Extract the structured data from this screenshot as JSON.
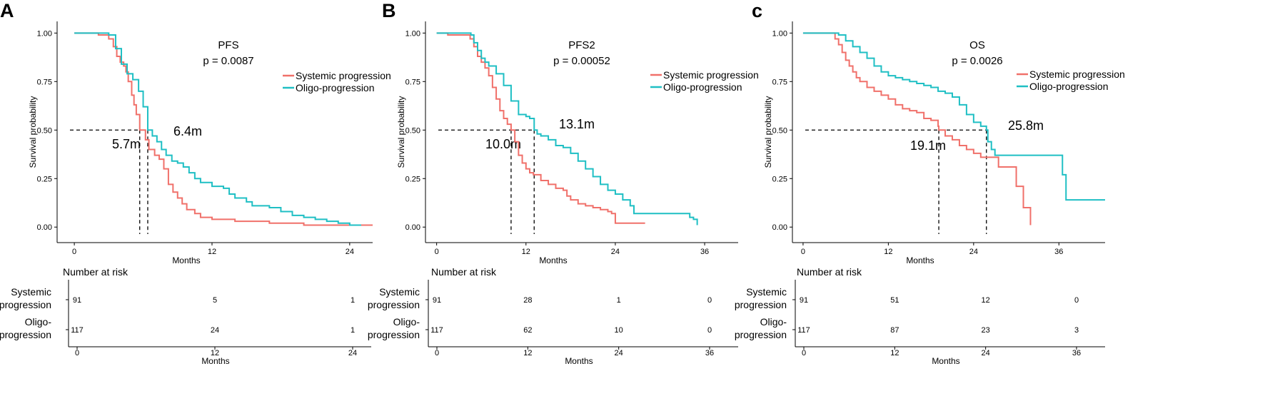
{
  "colors": {
    "systemic": "#F0706A",
    "oligo": "#1FBFC4",
    "axis": "#000000",
    "text": "#000000"
  },
  "risk_table_title": "Number at risk",
  "chart_data": [
    {
      "panel_label": "A",
      "type": "line",
      "title": "PFS",
      "pvalue": "p = 0.0087",
      "xlabel": "Months",
      "ylabel": "Survival probability",
      "xlim": [
        -1.5,
        26
      ],
      "ylim": [
        -0.08,
        1.06
      ],
      "xticks": [
        0,
        12,
        24
      ],
      "yticks": [
        "0.00",
        "0.25",
        "0.50",
        "0.75",
        "1.00"
      ],
      "yvalues": [
        0,
        0.25,
        0.5,
        0.75,
        1
      ],
      "median_annotations": [
        {
          "label": "5.7m",
          "x": 5.7,
          "series": "systemic"
        },
        {
          "label": "6.4m",
          "x": 6.4,
          "series": "oligo"
        }
      ],
      "series": [
        {
          "name": "Systemic progression",
          "key": "systemic",
          "points": [
            [
              0,
              1
            ],
            [
              2.1,
              1
            ],
            [
              2.1,
              0.99
            ],
            [
              3,
              0.99
            ],
            [
              3,
              0.97
            ],
            [
              3.4,
              0.97
            ],
            [
              3.4,
              0.93
            ],
            [
              3.7,
              0.88
            ],
            [
              4,
              0.85
            ],
            [
              4.3,
              0.83
            ],
            [
              4.5,
              0.8
            ],
            [
              4.7,
              0.75
            ],
            [
              5,
              0.68
            ],
            [
              5.2,
              0.63
            ],
            [
              5.4,
              0.58
            ],
            [
              5.7,
              0.5
            ],
            [
              6.2,
              0.45
            ],
            [
              6.5,
              0.4
            ],
            [
              7,
              0.37
            ],
            [
              7.4,
              0.35
            ],
            [
              7.8,
              0.3
            ],
            [
              8.2,
              0.22
            ],
            [
              8.6,
              0.18
            ],
            [
              9,
              0.15
            ],
            [
              9.4,
              0.12
            ],
            [
              9.8,
              0.09
            ],
            [
              10.5,
              0.07
            ],
            [
              11,
              0.05
            ],
            [
              12,
              0.04
            ],
            [
              14,
              0.03
            ],
            [
              17,
              0.02
            ],
            [
              20,
              0.01
            ],
            [
              26,
              0.01
            ]
          ]
        },
        {
          "name": "Oligo-progression",
          "key": "oligo",
          "points": [
            [
              0,
              1
            ],
            [
              2.9,
              1
            ],
            [
              3,
              0.99
            ],
            [
              3.6,
              0.92
            ],
            [
              4.1,
              0.84
            ],
            [
              4.6,
              0.79
            ],
            [
              5.1,
              0.76
            ],
            [
              5.6,
              0.7
            ],
            [
              6,
              0.62
            ],
            [
              6.4,
              0.5
            ],
            [
              6.8,
              0.47
            ],
            [
              7.2,
              0.44
            ],
            [
              7.6,
              0.4
            ],
            [
              8,
              0.37
            ],
            [
              8.5,
              0.34
            ],
            [
              9,
              0.33
            ],
            [
              9.5,
              0.31
            ],
            [
              10,
              0.28
            ],
            [
              10.5,
              0.25
            ],
            [
              11,
              0.23
            ],
            [
              12,
              0.21
            ],
            [
              13,
              0.2
            ],
            [
              13.5,
              0.17
            ],
            [
              14,
              0.15
            ],
            [
              15,
              0.13
            ],
            [
              15.5,
              0.11
            ],
            [
              17,
              0.1
            ],
            [
              18,
              0.08
            ],
            [
              19,
              0.06
            ],
            [
              20,
              0.05
            ],
            [
              21,
              0.04
            ],
            [
              22,
              0.03
            ],
            [
              23,
              0.02
            ],
            [
              24,
              0.01
            ],
            [
              25,
              0.01
            ]
          ]
        }
      ],
      "risk_table": {
        "xticks": [
          0,
          12,
          24
        ],
        "rows": [
          {
            "label_lines": [
              "Systemic",
              "progression"
            ],
            "values": [
              "91",
              "5",
              "1"
            ]
          },
          {
            "label_lines": [
              "Oligo-",
              "progression"
            ],
            "values": [
              "117",
              "24",
              "1"
            ]
          }
        ]
      }
    },
    {
      "panel_label": "B",
      "type": "line",
      "title": "PFS2",
      "pvalue": "p = 0.00052",
      "xlabel": "Months",
      "ylabel": "Survival probability",
      "xlim": [
        -1.5,
        40.5
      ],
      "ylim": [
        -0.08,
        1.06
      ],
      "xticks": [
        0,
        12,
        24,
        36
      ],
      "yticks": [
        "0.00",
        "0.25",
        "0.50",
        "0.75",
        "1.00"
      ],
      "yvalues": [
        0,
        0.25,
        0.5,
        0.75,
        1
      ],
      "median_annotations": [
        {
          "label": "10.0m",
          "x": 10.0,
          "series": "systemic"
        },
        {
          "label": "13.1m",
          "x": 13.1,
          "series": "oligo"
        }
      ],
      "series": [
        {
          "name": "Systemic progression",
          "key": "systemic",
          "points": [
            [
              0,
              1
            ],
            [
              1.5,
              1
            ],
            [
              1.5,
              0.99
            ],
            [
              4,
              0.99
            ],
            [
              4.5,
              0.97
            ],
            [
              5,
              0.93
            ],
            [
              5.5,
              0.88
            ],
            [
              6,
              0.85
            ],
            [
              6.5,
              0.82
            ],
            [
              7,
              0.78
            ],
            [
              7.5,
              0.72
            ],
            [
              8,
              0.66
            ],
            [
              8.5,
              0.6
            ],
            [
              9,
              0.56
            ],
            [
              9.5,
              0.53
            ],
            [
              10,
              0.5
            ],
            [
              10.5,
              0.44
            ],
            [
              11,
              0.37
            ],
            [
              11.5,
              0.33
            ],
            [
              12,
              0.3
            ],
            [
              12.5,
              0.28
            ],
            [
              13,
              0.27
            ],
            [
              14,
              0.24
            ],
            [
              15,
              0.22
            ],
            [
              16,
              0.2
            ],
            [
              17,
              0.19
            ],
            [
              17.5,
              0.16
            ],
            [
              18,
              0.14
            ],
            [
              19,
              0.12
            ],
            [
              20,
              0.11
            ],
            [
              21,
              0.1
            ],
            [
              22,
              0.09
            ],
            [
              23,
              0.08
            ],
            [
              23.5,
              0.07
            ],
            [
              24,
              0.02
            ],
            [
              28,
              0.02
            ]
          ]
        },
        {
          "name": "Oligo-progression",
          "key": "oligo",
          "points": [
            [
              0,
              1
            ],
            [
              4.3,
              1
            ],
            [
              4.6,
              0.99
            ],
            [
              5,
              0.95
            ],
            [
              5.5,
              0.91
            ],
            [
              6,
              0.87
            ],
            [
              6.5,
              0.85
            ],
            [
              7,
              0.83
            ],
            [
              8,
              0.79
            ],
            [
              9,
              0.73
            ],
            [
              10,
              0.65
            ],
            [
              11,
              0.58
            ],
            [
              12,
              0.57
            ],
            [
              12.5,
              0.56
            ],
            [
              13.1,
              0.5
            ],
            [
              13.5,
              0.48
            ],
            [
              14,
              0.47
            ],
            [
              15,
              0.45
            ],
            [
              16,
              0.42
            ],
            [
              17,
              0.41
            ],
            [
              18,
              0.38
            ],
            [
              19,
              0.34
            ],
            [
              20,
              0.3
            ],
            [
              21,
              0.26
            ],
            [
              22,
              0.22
            ],
            [
              23,
              0.19
            ],
            [
              24,
              0.17
            ],
            [
              25,
              0.14
            ],
            [
              26,
              0.11
            ],
            [
              26.5,
              0.07
            ],
            [
              28,
              0.07
            ],
            [
              33,
              0.07
            ],
            [
              34,
              0.05
            ],
            [
              34.5,
              0.04
            ],
            [
              35,
              0.01
            ]
          ]
        }
      ],
      "risk_table": {
        "xticks": [
          0,
          12,
          24,
          36
        ],
        "rows": [
          {
            "label_lines": [
              "Systemic",
              "progression"
            ],
            "values": [
              "91",
              "28",
              "1",
              "0"
            ]
          },
          {
            "label_lines": [
              "Oligo-",
              "progression"
            ],
            "values": [
              "117",
              "62",
              "10",
              "0"
            ]
          }
        ]
      }
    },
    {
      "panel_label": "c",
      "type": "line",
      "title": "OS",
      "pvalue": "p = 0.0026",
      "xlabel": "Months",
      "ylabel": "Survival probability",
      "xlim": [
        -1.5,
        42.5
      ],
      "ylim": [
        -0.08,
        1.06
      ],
      "xticks": [
        0,
        12,
        24,
        36
      ],
      "yticks": [
        "0.00",
        "0.25",
        "0.50",
        "0.75",
        "1.00"
      ],
      "yvalues": [
        0,
        0.25,
        0.5,
        0.75,
        1
      ],
      "median_annotations": [
        {
          "label": "19.1m",
          "x": 19.1,
          "series": "systemic"
        },
        {
          "label": "25.8m",
          "x": 25.8,
          "series": "oligo"
        }
      ],
      "series": [
        {
          "name": "Systemic progression",
          "key": "systemic",
          "points": [
            [
              0,
              1
            ],
            [
              4,
              1
            ],
            [
              4.5,
              0.97
            ],
            [
              5,
              0.94
            ],
            [
              5.5,
              0.9
            ],
            [
              6,
              0.86
            ],
            [
              6.5,
              0.83
            ],
            [
              7,
              0.8
            ],
            [
              7.5,
              0.77
            ],
            [
              8,
              0.75
            ],
            [
              9,
              0.72
            ],
            [
              10,
              0.7
            ],
            [
              11,
              0.68
            ],
            [
              12,
              0.66
            ],
            [
              13,
              0.63
            ],
            [
              14,
              0.61
            ],
            [
              15,
              0.6
            ],
            [
              16,
              0.59
            ],
            [
              17,
              0.56
            ],
            [
              18,
              0.55
            ],
            [
              19,
              0.52
            ],
            [
              19.1,
              0.5
            ],
            [
              20,
              0.47
            ],
            [
              21,
              0.45
            ],
            [
              22,
              0.42
            ],
            [
              23,
              0.4
            ],
            [
              24,
              0.38
            ],
            [
              25,
              0.36
            ],
            [
              27,
              0.36
            ],
            [
              27.5,
              0.31
            ],
            [
              30,
              0.31
            ],
            [
              30,
              0.21
            ],
            [
              31,
              0.21
            ],
            [
              31,
              0.1
            ],
            [
              32,
              0.1
            ],
            [
              32,
              0.01
            ]
          ]
        },
        {
          "name": "Oligo-progression",
          "key": "oligo",
          "points": [
            [
              0,
              1
            ],
            [
              4.5,
              1
            ],
            [
              5,
              0.99
            ],
            [
              6,
              0.96
            ],
            [
              7,
              0.93
            ],
            [
              8,
              0.9
            ],
            [
              9,
              0.87
            ],
            [
              10,
              0.83
            ],
            [
              11,
              0.8
            ],
            [
              12,
              0.78
            ],
            [
              13,
              0.77
            ],
            [
              14,
              0.76
            ],
            [
              15,
              0.75
            ],
            [
              16,
              0.74
            ],
            [
              17,
              0.73
            ],
            [
              18,
              0.72
            ],
            [
              19,
              0.7
            ],
            [
              20,
              0.69
            ],
            [
              21,
              0.67
            ],
            [
              22,
              0.63
            ],
            [
              23,
              0.58
            ],
            [
              24,
              0.54
            ],
            [
              25,
              0.52
            ],
            [
              25.8,
              0.5
            ],
            [
              26,
              0.44
            ],
            [
              26.5,
              0.4
            ],
            [
              27,
              0.37
            ],
            [
              29,
              0.37
            ],
            [
              33,
              0.37
            ],
            [
              36.5,
              0.37
            ],
            [
              36.5,
              0.27
            ],
            [
              37,
              0.27
            ],
            [
              37,
              0.14
            ],
            [
              42.5,
              0.14
            ]
          ]
        }
      ],
      "risk_table": {
        "xticks": [
          0,
          12,
          24,
          36
        ],
        "rows": [
          {
            "label_lines": [
              "Systemic",
              "progression"
            ],
            "values": [
              "91",
              "51",
              "12",
              "0"
            ]
          },
          {
            "label_lines": [
              "Oligo-",
              "progression"
            ],
            "values": [
              "117",
              "87",
              "23",
              "3"
            ]
          }
        ]
      }
    }
  ]
}
